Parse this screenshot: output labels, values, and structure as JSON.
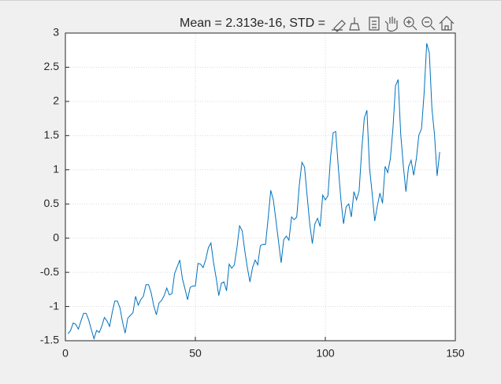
{
  "chart_data": {
    "type": "line",
    "title": "Mean = 2.313e-16, STD =",
    "x": [
      1,
      2,
      3,
      4,
      5,
      6,
      7,
      8,
      9,
      10,
      11,
      12,
      13,
      14,
      15,
      16,
      17,
      18,
      19,
      20,
      21,
      22,
      23,
      24,
      25,
      26,
      27,
      28,
      29,
      30,
      31,
      32,
      33,
      34,
      35,
      36,
      37,
      38,
      39,
      40,
      41,
      42,
      43,
      44,
      45,
      46,
      47,
      48,
      49,
      50,
      51,
      52,
      53,
      54,
      55,
      56,
      57,
      58,
      59,
      60,
      61,
      62,
      63,
      64,
      65,
      66,
      67,
      68,
      69,
      70,
      71,
      72,
      73,
      74,
      75,
      76,
      77,
      78,
      79,
      80,
      81,
      82,
      83,
      84,
      85,
      86,
      87,
      88,
      89,
      90,
      91,
      92,
      93,
      94,
      95,
      96,
      97,
      98,
      99,
      100,
      101,
      102,
      103,
      104,
      105,
      106,
      107,
      108,
      109,
      110,
      111,
      112,
      113,
      114,
      115,
      116,
      117,
      118,
      119,
      120,
      121,
      122,
      123,
      124,
      125,
      126,
      127,
      128,
      129,
      130,
      131,
      132,
      133,
      134,
      135,
      136,
      137,
      138,
      139,
      140,
      141,
      142,
      143,
      144
    ],
    "series": [
      {
        "color": "#0072bd",
        "values": [
          -1.4,
          -1.35,
          -1.24,
          -1.26,
          -1.33,
          -1.21,
          -1.1,
          -1.1,
          -1.2,
          -1.34,
          -1.47,
          -1.35,
          -1.38,
          -1.29,
          -1.16,
          -1.21,
          -1.29,
          -1.09,
          -0.92,
          -0.92,
          -1.02,
          -1.23,
          -1.39,
          -1.17,
          -1.13,
          -1.09,
          -0.85,
          -0.98,
          -0.9,
          -0.85,
          -0.68,
          -0.68,
          -0.8,
          -0.99,
          -1.12,
          -0.95,
          -0.91,
          -0.84,
          -0.73,
          -0.83,
          -0.81,
          -0.52,
          -0.42,
          -0.32,
          -0.59,
          -0.74,
          -0.9,
          -0.72,
          -0.7,
          -0.7,
          -0.37,
          -0.38,
          -0.43,
          -0.31,
          -0.14,
          -0.07,
          -0.36,
          -0.58,
          -0.84,
          -0.66,
          -0.64,
          -0.77,
          -0.38,
          -0.44,
          -0.39,
          -0.14,
          0.18,
          0.11,
          -0.18,
          -0.43,
          -0.64,
          -0.43,
          -0.32,
          -0.39,
          -0.11,
          -0.09,
          -0.09,
          0.29,
          0.7,
          0.56,
          0.26,
          -0.05,
          -0.36,
          -0.02,
          0.03,
          -0.03,
          0.31,
          0.27,
          0.31,
          0.78,
          1.11,
          1.04,
          0.62,
          0.21,
          -0.08,
          0.21,
          0.29,
          0.17,
          0.63,
          0.56,
          0.62,
          1.18,
          1.54,
          1.56,
          1.03,
          0.56,
          0.21,
          0.46,
          0.5,
          0.31,
          0.68,
          0.56,
          0.69,
          1.29,
          1.76,
          1.87,
          1.03,
          0.66,
          0.25,
          0.47,
          0.66,
          0.51,
          1.05,
          0.96,
          1.16,
          1.6,
          2.23,
          2.32,
          1.52,
          1.06,
          0.68,
          1.04,
          1.14,
          0.92,
          1.16,
          1.51,
          1.6,
          2.12,
          2.85,
          2.71,
          1.9,
          1.51,
          0.91,
          1.26
        ]
      }
    ],
    "xlim": [
      0,
      150
    ],
    "xticks": [
      0,
      50,
      100,
      150
    ],
    "ylim": [
      -1.5,
      3
    ],
    "yticks": [
      -1.5,
      -1,
      -0.5,
      0,
      0.5,
      1,
      1.5,
      2,
      2.5,
      3
    ],
    "grid": true
  }
}
